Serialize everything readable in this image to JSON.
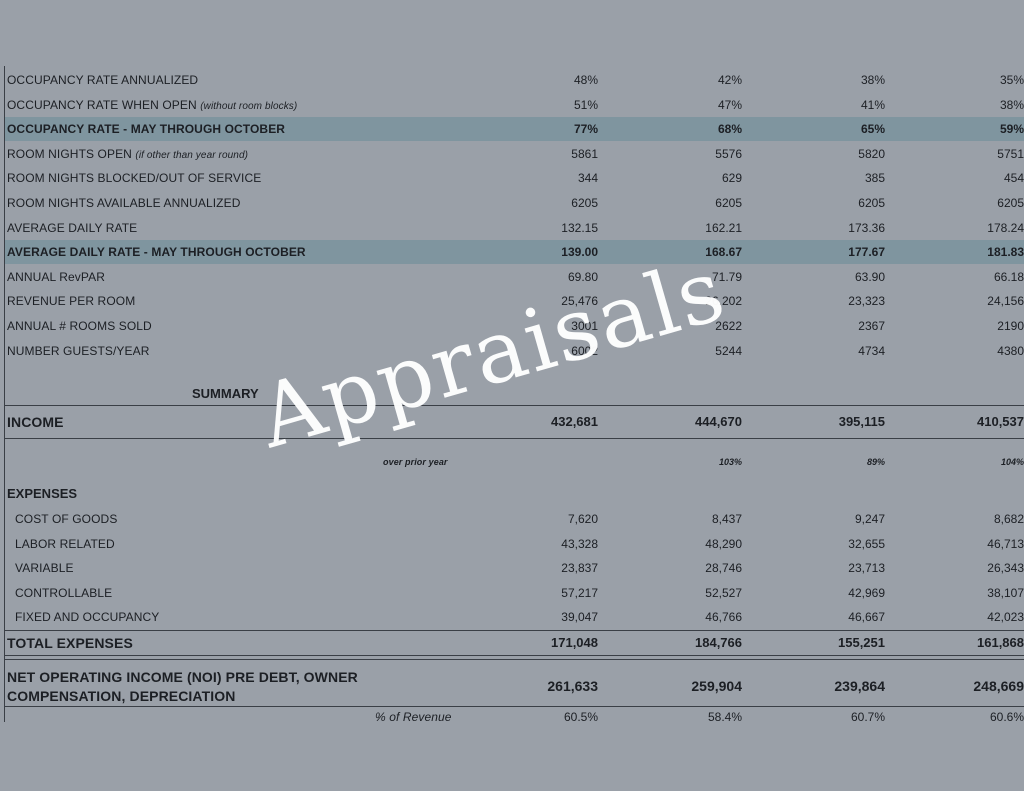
{
  "metrics": [
    {
      "label": "OCCUPANCY RATE ANNUALIZED",
      "note": "",
      "values": [
        "48%",
        "42%",
        "38%",
        "35%"
      ],
      "highlight": false
    },
    {
      "label": "OCCUPANCY RATE WHEN OPEN",
      "note": "(without room blocks)",
      "values": [
        "51%",
        "47%",
        "41%",
        "38%"
      ],
      "highlight": false
    },
    {
      "label": "OCCUPANCY RATE - MAY THROUGH OCTOBER",
      "note": "",
      "values": [
        "77%",
        "68%",
        "65%",
        "59%"
      ],
      "highlight": true
    },
    {
      "label": "ROOM NIGHTS OPEN",
      "note": "(if other than year round)",
      "values": [
        "5861",
        "5576",
        "5820",
        "5751"
      ],
      "highlight": false
    },
    {
      "label": "ROOM NIGHTS BLOCKED/OUT OF SERVICE",
      "note": "",
      "values": [
        "344",
        "629",
        "385",
        "454"
      ],
      "highlight": false
    },
    {
      "label": "ROOM NIGHTS AVAILABLE ANNUALIZED",
      "note": "",
      "values": [
        "6205",
        "6205",
        "6205",
        "6205"
      ],
      "highlight": false
    },
    {
      "label": "AVERAGE DAILY RATE",
      "note": "",
      "values": [
        "132.15",
        "162.21",
        "173.36",
        "178.24"
      ],
      "highlight": false
    },
    {
      "label": "AVERAGE DAILY RATE - MAY THROUGH OCTOBER",
      "note": "",
      "values": [
        "139.00",
        "168.67",
        "177.67",
        "181.83"
      ],
      "highlight": true
    },
    {
      "label": "ANNUAL RevPAR",
      "note": "",
      "values": [
        "69.80",
        "71.79",
        "63.90",
        "66.18"
      ],
      "highlight": false
    },
    {
      "label": "REVENUE PER ROOM",
      "note": "",
      "values": [
        "25,476",
        "26,202",
        "23,323",
        "24,156"
      ],
      "highlight": false
    },
    {
      "label": "ANNUAL # ROOMS SOLD",
      "note": "",
      "values": [
        "3001",
        "2622",
        "2367",
        "2190"
      ],
      "highlight": false
    },
    {
      "label": "NUMBER GUESTS/YEAR",
      "note": "",
      "values": [
        "6002",
        "5244",
        "4734",
        "4380"
      ],
      "highlight": false
    }
  ],
  "summary_label": "SUMMARY",
  "income": {
    "label": "INCOME",
    "values": [
      "432,681",
      "444,670",
      "395,115",
      "410,537"
    ]
  },
  "over_prior_year": {
    "label": "over prior year",
    "values": [
      "",
      "103%",
      "89%",
      "104%"
    ]
  },
  "expenses_label": "EXPENSES",
  "expenses": [
    {
      "label": "COST OF GOODS",
      "values": [
        "7,620",
        "8,437",
        "9,247",
        "8,682"
      ]
    },
    {
      "label": "LABOR RELATED",
      "values": [
        "43,328",
        "48,290",
        "32,655",
        "46,713"
      ]
    },
    {
      "label": "VARIABLE",
      "values": [
        "23,837",
        "28,746",
        "23,713",
        "26,343"
      ]
    },
    {
      "label": "CONTROLLABLE",
      "values": [
        "57,217",
        "52,527",
        "42,969",
        "38,107"
      ]
    },
    {
      "label": "FIXED AND OCCUPANCY",
      "values": [
        "39,047",
        "46,766",
        "46,667",
        "42,023"
      ]
    }
  ],
  "total_expenses": {
    "label": "TOTAL EXPENSES",
    "values": [
      "171,048",
      "184,766",
      "155,251",
      "161,868"
    ]
  },
  "noi": {
    "label": "NET OPERATING INCOME (NOI) PRE DEBT, OWNER COMPENSATION, DEPRECIATION",
    "values": [
      "261,633",
      "259,904",
      "239,864",
      "248,669"
    ]
  },
  "pct_revenue": {
    "label": "% of Revenue",
    "values": [
      "60.5%",
      "58.4%",
      "60.7%",
      "60.6%"
    ]
  },
  "watermark": "Appraisals"
}
